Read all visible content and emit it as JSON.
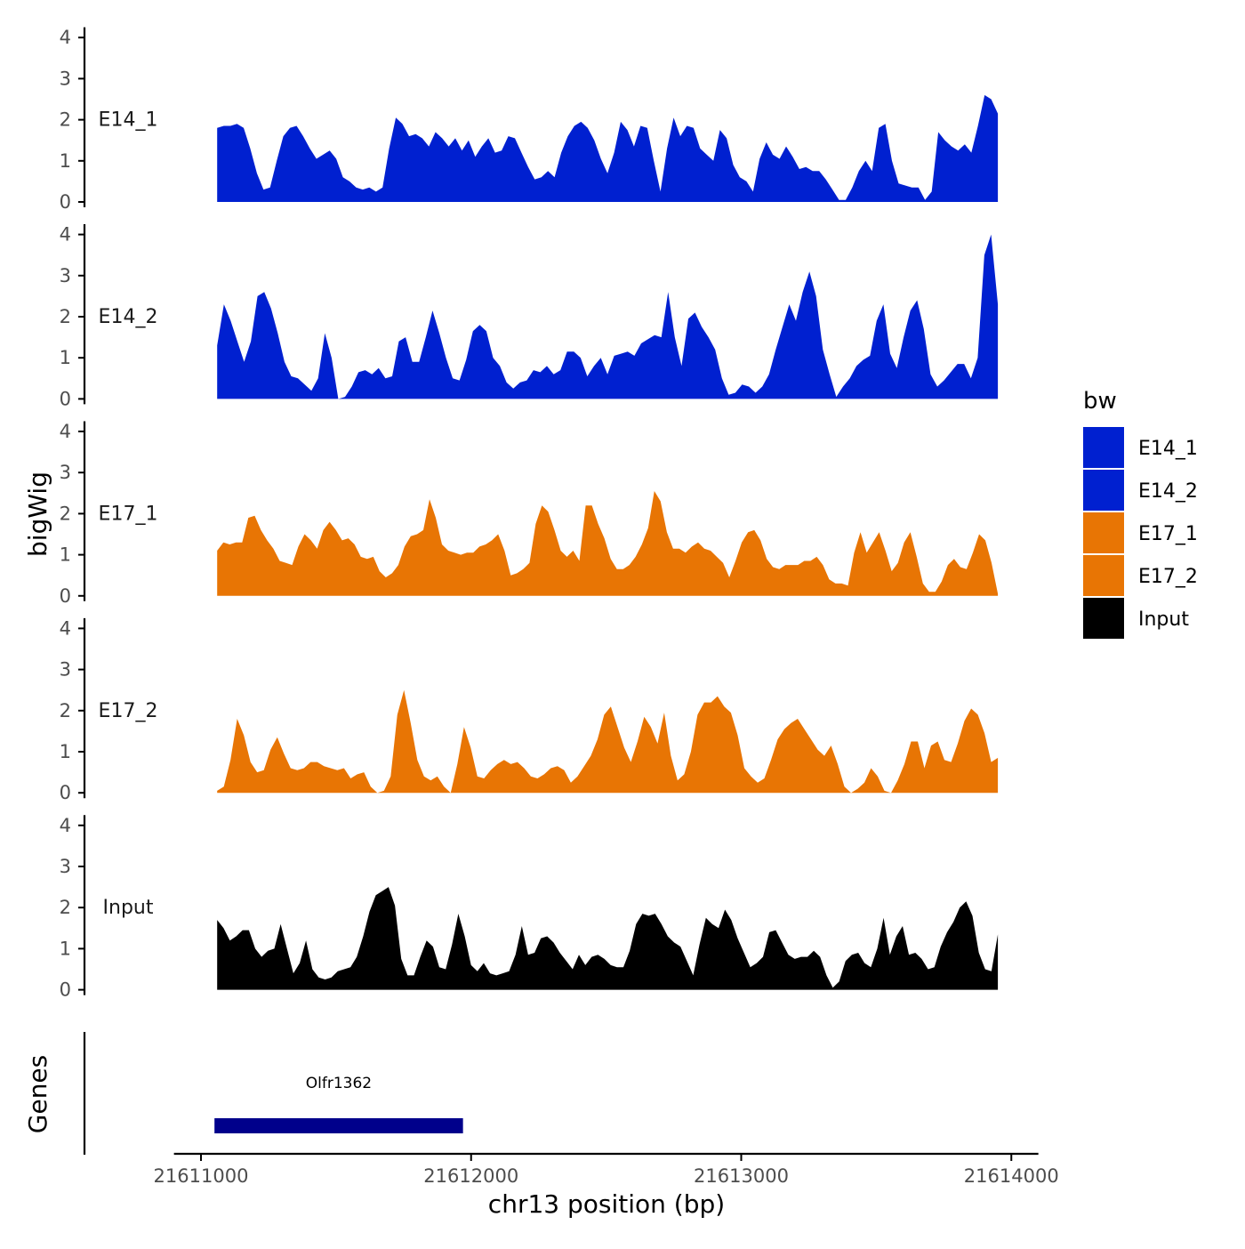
{
  "chart_data": {
    "type": "area",
    "chromosome": "chr13",
    "xlabel": "chr13 position (bp)",
    "ylabel": "bigWig",
    "xlim": [
      21610900,
      21614100
    ],
    "x_ticks": [
      21611000,
      21612000,
      21613000,
      21614000
    ],
    "x_tick_labels": [
      "21611000",
      "21612000",
      "21613000",
      "21614000"
    ],
    "ylim": [
      0,
      4.25
    ],
    "y_ticks": [
      0,
      1,
      2,
      3,
      4
    ],
    "y_tick_labels": [
      "0",
      "1",
      "2",
      "3",
      "4"
    ],
    "x_start": 21611060,
    "x_end": 21613950,
    "legend": {
      "title": "bw",
      "position": "right",
      "entries": [
        {
          "label": "E14_1",
          "color": "#0020D0"
        },
        {
          "label": "E14_2",
          "color": "#0020D0"
        },
        {
          "label": "E17_1",
          "color": "#E87504"
        },
        {
          "label": "E17_2",
          "color": "#E87504"
        },
        {
          "label": "Input",
          "color": "#000000"
        }
      ]
    },
    "series": [
      {
        "name": "E14_1",
        "color": "#0020D0",
        "values": [
          1.8,
          1.85,
          1.85,
          1.9,
          1.8,
          1.3,
          0.7,
          0.3,
          0.35,
          1.0,
          1.6,
          1.8,
          1.85,
          1.6,
          1.3,
          1.05,
          1.15,
          1.25,
          1.05,
          0.6,
          0.5,
          0.35,
          0.3,
          0.35,
          0.25,
          0.35,
          1.3,
          2.05,
          1.9,
          1.6,
          1.65,
          1.55,
          1.35,
          1.7,
          1.55,
          1.35,
          1.55,
          1.25,
          1.5,
          1.1,
          1.35,
          1.55,
          1.2,
          1.25,
          1.6,
          1.55,
          1.2,
          0.85,
          0.55,
          0.6,
          0.75,
          0.6,
          1.2,
          1.6,
          1.85,
          1.95,
          1.8,
          1.5,
          1.05,
          0.7,
          1.2,
          1.95,
          1.75,
          1.35,
          1.85,
          1.8,
          1.0,
          0.25,
          1.3,
          2.05,
          1.6,
          1.85,
          1.8,
          1.3,
          1.15,
          1.0,
          1.75,
          1.55,
          0.9,
          0.6,
          0.5,
          0.25,
          1.05,
          1.45,
          1.15,
          1.05,
          1.35,
          1.1,
          0.8,
          0.85,
          0.75,
          0.75,
          0.55,
          0.3,
          0.05,
          0.05,
          0.35,
          0.75,
          1.0,
          0.75,
          1.8,
          1.9,
          1.0,
          0.45,
          0.4,
          0.35,
          0.35,
          0.05,
          0.25,
          1.7,
          1.5,
          1.35,
          1.25,
          1.4,
          1.2,
          1.85,
          2.6,
          2.5,
          2.15
        ]
      },
      {
        "name": "E14_2",
        "color": "#0020D0",
        "values": [
          1.3,
          2.3,
          1.9,
          1.4,
          0.9,
          1.4,
          2.5,
          2.6,
          2.2,
          1.6,
          0.9,
          0.55,
          0.5,
          0.35,
          0.2,
          0.5,
          1.6,
          1.0,
          0.0,
          0.05,
          0.3,
          0.65,
          0.7,
          0.6,
          0.75,
          0.5,
          0.55,
          1.4,
          1.5,
          0.9,
          0.9,
          1.5,
          2.15,
          1.6,
          1.0,
          0.5,
          0.45,
          0.95,
          1.65,
          1.8,
          1.65,
          1.0,
          0.8,
          0.4,
          0.25,
          0.4,
          0.45,
          0.7,
          0.65,
          0.8,
          0.6,
          0.7,
          1.15,
          1.15,
          1.0,
          0.55,
          0.8,
          1.0,
          0.6,
          1.05,
          1.1,
          1.15,
          1.05,
          1.35,
          1.45,
          1.55,
          1.5,
          2.6,
          1.5,
          0.8,
          1.95,
          2.1,
          1.75,
          1.5,
          1.2,
          0.5,
          0.1,
          0.15,
          0.35,
          0.3,
          0.15,
          0.3,
          0.6,
          1.2,
          1.75,
          2.3,
          1.9,
          2.6,
          3.1,
          2.5,
          1.2,
          0.6,
          0.05,
          0.3,
          0.5,
          0.8,
          0.95,
          1.05,
          1.9,
          2.3,
          1.1,
          0.75,
          1.5,
          2.15,
          2.4,
          1.7,
          0.6,
          0.3,
          0.45,
          0.65,
          0.85,
          0.85,
          0.5,
          1.0,
          3.5,
          4.0,
          2.3
        ]
      },
      {
        "name": "E17_1",
        "color": "#E87504",
        "values": [
          1.1,
          1.3,
          1.25,
          1.3,
          1.3,
          1.9,
          1.95,
          1.6,
          1.35,
          1.15,
          0.85,
          0.8,
          0.75,
          1.2,
          1.5,
          1.35,
          1.15,
          1.6,
          1.8,
          1.6,
          1.35,
          1.4,
          1.25,
          0.95,
          0.9,
          0.95,
          0.6,
          0.45,
          0.55,
          0.75,
          1.2,
          1.45,
          1.5,
          1.6,
          2.35,
          1.9,
          1.25,
          1.1,
          1.05,
          1.0,
          1.05,
          1.05,
          1.2,
          1.25,
          1.35,
          1.5,
          1.1,
          0.5,
          0.55,
          0.65,
          0.8,
          1.75,
          2.2,
          2.05,
          1.6,
          1.1,
          0.95,
          1.1,
          0.85,
          2.2,
          2.2,
          1.75,
          1.4,
          0.9,
          0.65,
          0.65,
          0.75,
          0.95,
          1.25,
          1.65,
          2.55,
          2.3,
          1.55,
          1.15,
          1.15,
          1.05,
          1.2,
          1.3,
          1.15,
          1.1,
          0.95,
          0.8,
          0.45,
          0.85,
          1.3,
          1.55,
          1.6,
          1.35,
          0.9,
          0.7,
          0.65,
          0.75,
          0.75,
          0.75,
          0.85,
          0.85,
          0.95,
          0.75,
          0.4,
          0.3,
          0.3,
          0.25,
          1.05,
          1.55,
          1.05,
          1.3,
          1.55,
          1.1,
          0.6,
          0.8,
          1.3,
          1.55,
          0.95,
          0.3,
          0.1,
          0.1,
          0.35,
          0.75,
          0.9,
          0.7,
          0.65,
          1.05,
          1.5,
          1.35,
          0.8,
          0.05
        ]
      },
      {
        "name": "E17_2",
        "color": "#E87504",
        "values": [
          0.05,
          0.15,
          0.8,
          1.8,
          1.4,
          0.75,
          0.5,
          0.55,
          1.05,
          1.35,
          0.95,
          0.6,
          0.55,
          0.6,
          0.75,
          0.75,
          0.65,
          0.6,
          0.55,
          0.6,
          0.35,
          0.45,
          0.5,
          0.15,
          0.0,
          0.05,
          0.4,
          1.9,
          2.5,
          1.7,
          0.8,
          0.4,
          0.3,
          0.4,
          0.15,
          0.0,
          0.7,
          1.6,
          1.1,
          0.4,
          0.35,
          0.55,
          0.7,
          0.8,
          0.7,
          0.75,
          0.6,
          0.4,
          0.35,
          0.45,
          0.6,
          0.65,
          0.55,
          0.25,
          0.4,
          0.65,
          0.9,
          1.3,
          1.9,
          2.1,
          1.6,
          1.1,
          0.75,
          1.25,
          1.85,
          1.6,
          1.2,
          1.95,
          0.9,
          0.3,
          0.45,
          1.0,
          1.9,
          2.2,
          2.2,
          2.35,
          2.1,
          1.95,
          1.4,
          0.6,
          0.4,
          0.25,
          0.35,
          0.8,
          1.3,
          1.55,
          1.7,
          1.8,
          1.55,
          1.3,
          1.05,
          0.9,
          1.15,
          0.7,
          0.15,
          0.0,
          0.1,
          0.25,
          0.6,
          0.4,
          0.05,
          0.0,
          0.3,
          0.7,
          1.25,
          1.25,
          0.6,
          1.15,
          1.25,
          0.8,
          0.75,
          1.2,
          1.75,
          2.05,
          1.9,
          1.45,
          0.75,
          0.85
        ]
      },
      {
        "name": "Input",
        "color": "#000000",
        "values": [
          1.7,
          1.5,
          1.2,
          1.3,
          1.45,
          1.45,
          1.0,
          0.8,
          0.95,
          1.0,
          1.6,
          1.0,
          0.4,
          0.65,
          1.2,
          0.5,
          0.3,
          0.25,
          0.3,
          0.45,
          0.5,
          0.55,
          0.8,
          1.3,
          1.9,
          2.3,
          2.4,
          2.5,
          2.05,
          0.75,
          0.35,
          0.35,
          0.8,
          1.2,
          1.05,
          0.55,
          0.5,
          1.1,
          1.85,
          1.3,
          0.6,
          0.45,
          0.65,
          0.4,
          0.35,
          0.4,
          0.45,
          0.85,
          1.55,
          0.85,
          0.9,
          1.25,
          1.3,
          1.15,
          0.9,
          0.7,
          0.5,
          0.85,
          0.6,
          0.8,
          0.85,
          0.75,
          0.6,
          0.55,
          0.55,
          0.95,
          1.6,
          1.85,
          1.8,
          1.85,
          1.6,
          1.3,
          1.15,
          1.05,
          0.7,
          0.35,
          1.1,
          1.75,
          1.6,
          1.5,
          1.95,
          1.7,
          1.25,
          0.9,
          0.55,
          0.65,
          0.8,
          1.4,
          1.45,
          1.15,
          0.85,
          0.75,
          0.8,
          0.8,
          0.95,
          0.8,
          0.35,
          0.05,
          0.2,
          0.7,
          0.85,
          0.9,
          0.65,
          0.55,
          1.0,
          1.75,
          0.85,
          1.3,
          1.55,
          0.85,
          0.9,
          0.75,
          0.5,
          0.55,
          1.05,
          1.4,
          1.65,
          2.0,
          2.15,
          1.8,
          0.9,
          0.5,
          0.45,
          1.35
        ]
      }
    ],
    "genes_track": {
      "label": "Genes",
      "genes": [
        {
          "name": "Olfr1362",
          "start": 21611050,
          "end": 21611970,
          "color": "#00008B"
        }
      ]
    }
  }
}
